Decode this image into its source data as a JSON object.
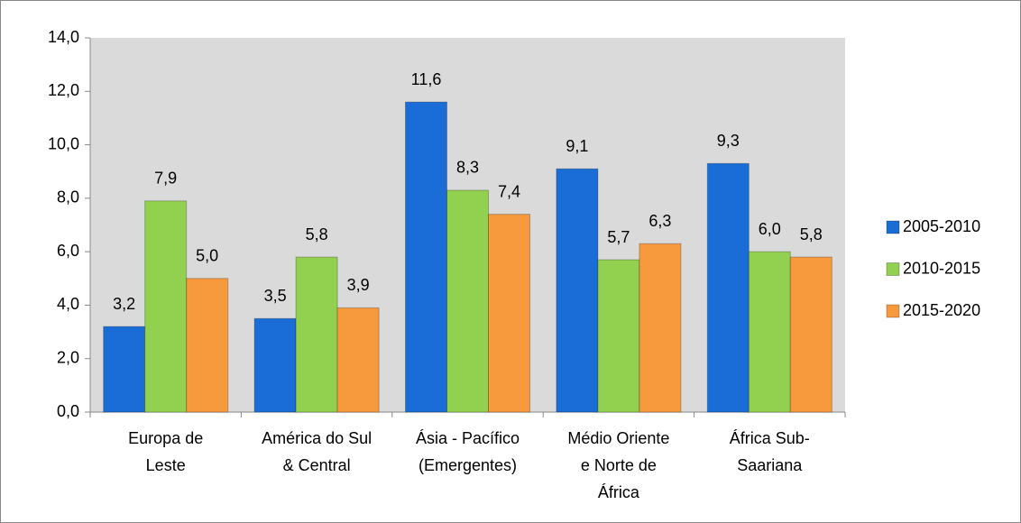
{
  "chart_data": {
    "type": "bar",
    "categories": [
      "Europa de Leste",
      "América do Sul & Central",
      "Ásia - Pacífico (Emergentes)",
      "Médio Oriente e Norte de África",
      "África Sub-Saariana"
    ],
    "series": [
      {
        "name": "2005-2010",
        "color": "#1a6dd6",
        "values": [
          3.2,
          3.5,
          11.6,
          9.1,
          9.3
        ],
        "value_labels": [
          "3,2",
          "3,5",
          "11,6",
          "9,1",
          "9,3"
        ]
      },
      {
        "name": "2010-2015",
        "color": "#92d050",
        "values": [
          7.9,
          5.8,
          8.3,
          5.7,
          6.0
        ],
        "value_labels": [
          "7,9",
          "5,8",
          "8,3",
          "5,7",
          "6,0"
        ]
      },
      {
        "name": "2015-2020",
        "color": "#f79a3e",
        "values": [
          5.0,
          3.9,
          7.4,
          6.3,
          5.8
        ],
        "value_labels": [
          "5,0",
          "3,9",
          "7,4",
          "6,3",
          "5,8"
        ]
      }
    ],
    "ylim": [
      0,
      14
    ],
    "yticks": [
      {
        "value": 0,
        "label": "0,0"
      },
      {
        "value": 2,
        "label": "2,0"
      },
      {
        "value": 4,
        "label": "4,0"
      },
      {
        "value": 6,
        "label": "6,0"
      },
      {
        "value": 8,
        "label": "8,0"
      },
      {
        "value": 10,
        "label": "10,0"
      },
      {
        "value": 12,
        "label": "12,0"
      },
      {
        "value": 14,
        "label": "14,0"
      }
    ],
    "legend": "right"
  }
}
